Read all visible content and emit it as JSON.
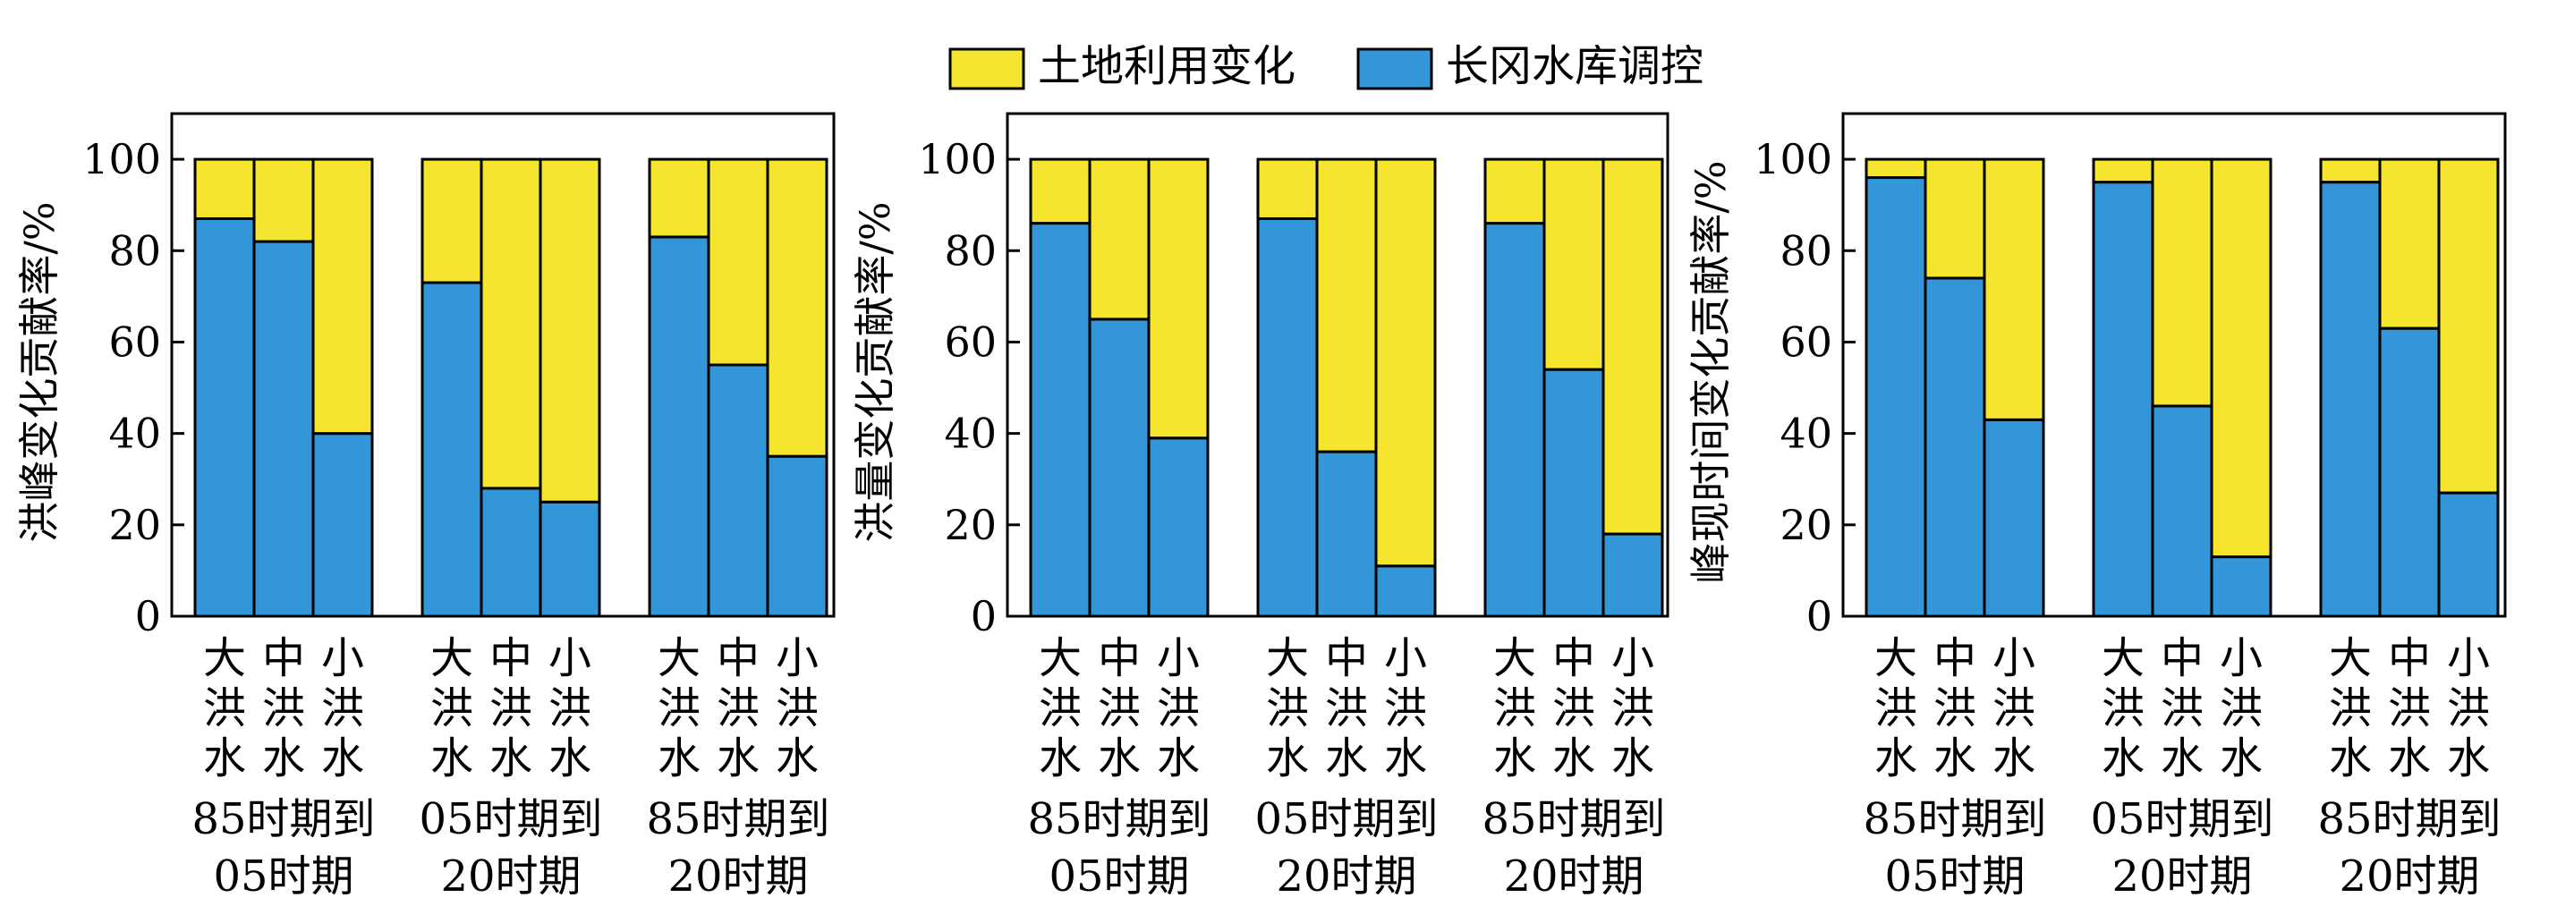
{
  "legend": [
    {
      "label": "土地利用变化",
      "color": "#f5e52e"
    },
    {
      "label": "长冈水库调控",
      "color": "#3396d8"
    }
  ],
  "colors": {
    "land_use": "#f5e52e",
    "reservoir": "#3396d8",
    "stroke": "#000000"
  },
  "chart_data": [
    {
      "type": "bar",
      "stacked": true,
      "normalized_percent": true,
      "ylabel": "洪峰变化贡献率/%",
      "ylim": [
        0,
        110
      ],
      "yticks": [
        0,
        20,
        40,
        60,
        80,
        100
      ],
      "grid": false,
      "groups": [
        {
          "period_top": "85时期到",
          "period_bottom": "05时期",
          "bars": [
            {
              "label": "大洪水",
              "reservoir": 87,
              "land_use": 13
            },
            {
              "label": "中洪水",
              "reservoir": 82,
              "land_use": 18
            },
            {
              "label": "小洪水",
              "reservoir": 40,
              "land_use": 60
            }
          ]
        },
        {
          "period_top": "05时期到",
          "period_bottom": "20时期",
          "bars": [
            {
              "label": "大洪水",
              "reservoir": 73,
              "land_use": 27
            },
            {
              "label": "中洪水",
              "reservoir": 28,
              "land_use": 72
            },
            {
              "label": "小洪水",
              "reservoir": 25,
              "land_use": 75
            }
          ]
        },
        {
          "period_top": "85时期到",
          "period_bottom": "20时期",
          "bars": [
            {
              "label": "大洪水",
              "reservoir": 83,
              "land_use": 17
            },
            {
              "label": "中洪水",
              "reservoir": 55,
              "land_use": 45
            },
            {
              "label": "小洪水",
              "reservoir": 35,
              "land_use": 65
            }
          ]
        }
      ]
    },
    {
      "type": "bar",
      "stacked": true,
      "normalized_percent": true,
      "ylabel": "洪量变化贡献率/%",
      "ylim": [
        0,
        110
      ],
      "yticks": [
        0,
        20,
        40,
        60,
        80,
        100
      ],
      "grid": false,
      "groups": [
        {
          "period_top": "85时期到",
          "period_bottom": "05时期",
          "bars": [
            {
              "label": "大洪水",
              "reservoir": 86,
              "land_use": 14
            },
            {
              "label": "中洪水",
              "reservoir": 65,
              "land_use": 35
            },
            {
              "label": "小洪水",
              "reservoir": 39,
              "land_use": 61
            }
          ]
        },
        {
          "period_top": "05时期到",
          "period_bottom": "20时期",
          "bars": [
            {
              "label": "大洪水",
              "reservoir": 87,
              "land_use": 13
            },
            {
              "label": "中洪水",
              "reservoir": 36,
              "land_use": 64
            },
            {
              "label": "小洪水",
              "reservoir": 11,
              "land_use": 89
            }
          ]
        },
        {
          "period_top": "85时期到",
          "period_bottom": "20时期",
          "bars": [
            {
              "label": "大洪水",
              "reservoir": 86,
              "land_use": 14
            },
            {
              "label": "中洪水",
              "reservoir": 54,
              "land_use": 46
            },
            {
              "label": "小洪水",
              "reservoir": 18,
              "land_use": 82
            }
          ]
        }
      ]
    },
    {
      "type": "bar",
      "stacked": true,
      "normalized_percent": true,
      "ylabel": "峰现时间变化贡献率/%",
      "ylim": [
        0,
        110
      ],
      "yticks": [
        0,
        20,
        40,
        60,
        80,
        100
      ],
      "grid": false,
      "groups": [
        {
          "period_top": "85时期到",
          "period_bottom": "05时期",
          "bars": [
            {
              "label": "大洪水",
              "reservoir": 96,
              "land_use": 4
            },
            {
              "label": "中洪水",
              "reservoir": 74,
              "land_use": 26
            },
            {
              "label": "小洪水",
              "reservoir": 43,
              "land_use": 57
            }
          ]
        },
        {
          "period_top": "05时期到",
          "period_bottom": "20时期",
          "bars": [
            {
              "label": "大洪水",
              "reservoir": 95,
              "land_use": 5
            },
            {
              "label": "中洪水",
              "reservoir": 46,
              "land_use": 54
            },
            {
              "label": "小洪水",
              "reservoir": 13,
              "land_use": 87
            }
          ]
        },
        {
          "period_top": "85时期到",
          "period_bottom": "20时期",
          "bars": [
            {
              "label": "大洪水",
              "reservoir": 95,
              "land_use": 5
            },
            {
              "label": "中洪水",
              "reservoir": 63,
              "land_use": 37
            },
            {
              "label": "小洪水",
              "reservoir": 27,
              "land_use": 73
            }
          ]
        }
      ]
    }
  ]
}
